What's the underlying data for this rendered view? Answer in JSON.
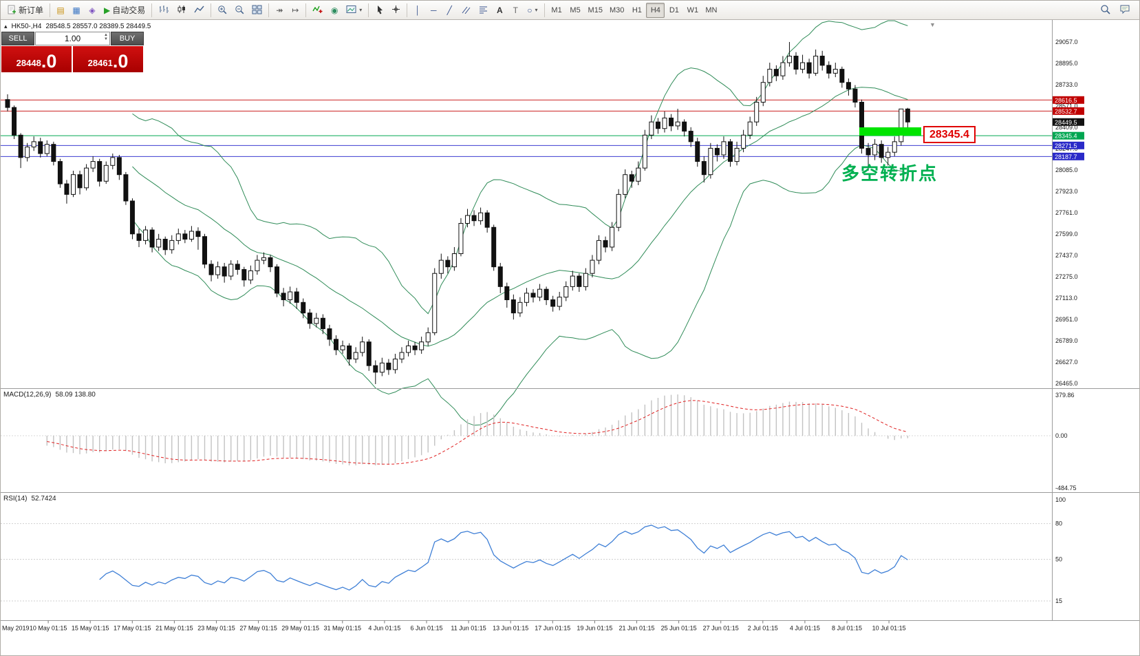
{
  "toolbar": {
    "new_order_label": "新订单",
    "auto_trading_label": "自动交易",
    "timeframes": [
      "M1",
      "M5",
      "M15",
      "M30",
      "H1",
      "H4",
      "D1",
      "W1",
      "MN"
    ],
    "active_timeframe": "H4"
  },
  "icons": {
    "play": "▶",
    "terminal": "▤",
    "data_window": "▦",
    "navigator": "◈",
    "auto_scroll": "↠",
    "chart_shift": "↦",
    "globe": "◉",
    "vline": "│",
    "hline": "─",
    "trendline": "╱",
    "text": "A",
    "text_label": "T",
    "dropdown": "▾",
    "shapes": "○",
    "spin_up": "▲",
    "spin_down": "▼",
    "collapse": "▴",
    "shift_marker": "▼"
  },
  "symbol_info": {
    "symbol": "HK50-,H4",
    "ohlc": "28548.5 28557.0 28389.5 28449.5"
  },
  "trade_panel": {
    "sell_label": "SELL",
    "buy_label": "BUY",
    "volume": "1.00",
    "sell_price": {
      "main": "28448",
      "frac": ".0"
    },
    "buy_price": {
      "main": "28461",
      "frac": ".0"
    }
  },
  "annotations": {
    "turning_point_text": "多空转折点",
    "level_callout": "28345.4"
  },
  "price_axis": {
    "ticks": [
      29057.0,
      28895.0,
      28733.0,
      28571.0,
      28409.0,
      28247.0,
      28085.0,
      27923.0,
      27761.0,
      27599.0,
      27437.0,
      27275.0,
      27113.0,
      26951.0,
      26789.0,
      26627.0,
      26465.0
    ]
  },
  "levels": [
    {
      "price": 28616.5,
      "label": "28616.5",
      "color": "#cc2020",
      "tag_bg": "#c00000",
      "line": true
    },
    {
      "price": 28532.7,
      "label": "28532.7",
      "color": "#cc2020",
      "tag_bg": "#c00000",
      "line": true
    },
    {
      "price": 28449.5,
      "label": "28449.5",
      "color": "#000000",
      "tag_bg": "#111111",
      "line": false
    },
    {
      "price": 28345.4,
      "label": "28345.4",
      "color": "#00a651",
      "tag_bg": "#00a651",
      "line": true
    },
    {
      "price": 28271.5,
      "label": "28271.5",
      "color": "#3b3bd0",
      "tag_bg": "#2a2ac8",
      "line": true
    },
    {
      "price": 28187.7,
      "label": "28187.7",
      "color": "#3b3bd0",
      "tag_bg": "#2a2ac8",
      "line": true
    }
  ],
  "highlight_zone": {
    "price_top": 28409.0,
    "price_bottom": 28345.4,
    "color": "#00e400"
  },
  "time_axis": [
    "May 2019",
    "10 May 01:15",
    "15 May 01:15",
    "17 May 01:15",
    "21 May 01:15",
    "23 May 01:15",
    "27 May 01:15",
    "29 May 01:15",
    "31 May 01:15",
    "4 Jun 01:15",
    "6 Jun 01:15",
    "11 Jun 01:15",
    "13 Jun 01:15",
    "17 Jun 01:15",
    "19 Jun 01:15",
    "21 Jun 01:15",
    "25 Jun 01:15",
    "27 Jun 01:15",
    "2 Jul 01:15",
    "4 Jul 01:15",
    "8 Jul 01:15",
    "10 Jul 01:15"
  ],
  "indicators": {
    "macd": {
      "title": "MACD(12,26,9)",
      "value_text": "58.09 138.80",
      "axis_ticks": [
        "379.86",
        "0.00",
        "-484.75"
      ],
      "params": {
        "fast": 12,
        "slow": 26,
        "signal": 9
      }
    },
    "rsi": {
      "title": "RSI(14)",
      "value_text": "52.7424",
      "axis_ticks": [
        100,
        80,
        50,
        15
      ],
      "period": 14
    }
  },
  "colors": {
    "bollinger": "#2e8b57",
    "bull": "#ffffff",
    "bear": "#111111",
    "wick": "#111111",
    "macd_hist": "#c2c2c2",
    "macd_signal": "#e02020",
    "rsi_line": "#3e7fd6",
    "grid_sep": "#9a9a9a",
    "axis_text": "#1a1a1a",
    "level_red": "#cc2020",
    "level_green": "#00a651",
    "level_blue": "#3b3bd0"
  },
  "chart_data": {
    "type": "candlestick",
    "symbol": "HK50-",
    "timeframe": "H4",
    "bollinger": {
      "period": 20,
      "deviation": 2
    },
    "candles": [
      [
        28620,
        28660,
        28530,
        28560
      ],
      [
        28560,
        28575,
        28320,
        28350
      ],
      [
        28350,
        28365,
        28100,
        28180
      ],
      [
        28180,
        28290,
        28150,
        28260
      ],
      [
        28260,
        28340,
        28230,
        28300
      ],
      [
        28300,
        28330,
        28180,
        28210
      ],
      [
        28210,
        28310,
        28190,
        28280
      ],
      [
        28280,
        28300,
        28120,
        28150
      ],
      [
        28150,
        28170,
        27950,
        27980
      ],
      [
        27980,
        28010,
        27830,
        27900
      ],
      [
        27900,
        28080,
        27880,
        28050
      ],
      [
        28050,
        28080,
        27900,
        27950
      ],
      [
        27950,
        28130,
        27930,
        28100
      ],
      [
        28100,
        28190,
        28070,
        28150
      ],
      [
        28150,
        28170,
        27960,
        28000
      ],
      [
        28000,
        28150,
        27980,
        28120
      ],
      [
        28120,
        28210,
        28090,
        28180
      ],
      [
        28180,
        28200,
        28010,
        28050
      ],
      [
        28050,
        28070,
        27820,
        27850
      ],
      [
        27850,
        27870,
        27560,
        27600
      ],
      [
        27600,
        27640,
        27500,
        27550
      ],
      [
        27550,
        27660,
        27520,
        27630
      ],
      [
        27630,
        27650,
        27460,
        27500
      ],
      [
        27500,
        27600,
        27470,
        27560
      ],
      [
        27560,
        27580,
        27440,
        27480
      ],
      [
        27480,
        27590,
        27450,
        27550
      ],
      [
        27550,
        27640,
        27520,
        27600
      ],
      [
        27600,
        27630,
        27530,
        27560
      ],
      [
        27560,
        27660,
        27540,
        27620
      ],
      [
        27620,
        27650,
        27480,
        27580
      ],
      [
        27580,
        27600,
        27340,
        27370
      ],
      [
        27370,
        27400,
        27240,
        27290
      ],
      [
        27290,
        27390,
        27260,
        27350
      ],
      [
        27350,
        27380,
        27230,
        27280
      ],
      [
        27280,
        27400,
        27250,
        27370
      ],
      [
        27370,
        27400,
        27290,
        27330
      ],
      [
        27330,
        27350,
        27200,
        27250
      ],
      [
        27250,
        27360,
        27220,
        27320
      ],
      [
        27320,
        27440,
        27290,
        27400
      ],
      [
        27400,
        27460,
        27370,
        27420
      ],
      [
        27420,
        27440,
        27310,
        27350
      ],
      [
        27350,
        27370,
        27120,
        27150
      ],
      [
        27150,
        27190,
        27050,
        27100
      ],
      [
        27100,
        27200,
        27070,
        27160
      ],
      [
        27160,
        27190,
        27030,
        27080
      ],
      [
        27080,
        27110,
        26960,
        27000
      ],
      [
        27000,
        27030,
        26880,
        26920
      ],
      [
        26920,
        27000,
        26890,
        26960
      ],
      [
        26960,
        26990,
        26840,
        26880
      ],
      [
        26880,
        26910,
        26750,
        26800
      ],
      [
        26800,
        26830,
        26680,
        26720
      ],
      [
        26720,
        26790,
        26690,
        26750
      ],
      [
        26750,
        26770,
        26600,
        26650
      ],
      [
        26650,
        26740,
        26620,
        26700
      ],
      [
        26700,
        26820,
        26670,
        26780
      ],
      [
        26780,
        26800,
        26560,
        26600
      ],
      [
        26600,
        26640,
        26460,
        26550
      ],
      [
        26550,
        26660,
        26520,
        26620
      ],
      [
        26620,
        26650,
        26530,
        26570
      ],
      [
        26570,
        26690,
        26540,
        26650
      ],
      [
        26650,
        26740,
        26620,
        26700
      ],
      [
        26700,
        26790,
        26670,
        26750
      ],
      [
        26750,
        26780,
        26680,
        26720
      ],
      [
        26720,
        26820,
        26690,
        26780
      ],
      [
        26780,
        26890,
        26750,
        26850
      ],
      [
        26850,
        27340,
        26830,
        27300
      ],
      [
        27300,
        27450,
        27260,
        27400
      ],
      [
        27400,
        27430,
        27300,
        27350
      ],
      [
        27350,
        27500,
        27320,
        27450
      ],
      [
        27450,
        27720,
        27430,
        27680
      ],
      [
        27680,
        27790,
        27650,
        27740
      ],
      [
        27740,
        27780,
        27660,
        27700
      ],
      [
        27700,
        27800,
        27670,
        27760
      ],
      [
        27760,
        27780,
        27610,
        27650
      ],
      [
        27650,
        27670,
        27320,
        27350
      ],
      [
        27350,
        27380,
        27150,
        27200
      ],
      [
        27200,
        27230,
        27040,
        27100
      ],
      [
        27100,
        27140,
        26950,
        27000
      ],
      [
        27000,
        27120,
        26970,
        27080
      ],
      [
        27080,
        27190,
        27050,
        27150
      ],
      [
        27150,
        27180,
        27080,
        27120
      ],
      [
        27120,
        27220,
        27090,
        27180
      ],
      [
        27180,
        27200,
        27060,
        27100
      ],
      [
        27100,
        27130,
        27010,
        27050
      ],
      [
        27050,
        27160,
        27020,
        27120
      ],
      [
        27120,
        27240,
        27090,
        27200
      ],
      [
        27200,
        27320,
        27170,
        27280
      ],
      [
        27280,
        27300,
        27160,
        27200
      ],
      [
        27200,
        27340,
        27170,
        27300
      ],
      [
        27300,
        27440,
        27270,
        27400
      ],
      [
        27400,
        27590,
        27370,
        27550
      ],
      [
        27550,
        27580,
        27460,
        27500
      ],
      [
        27500,
        27690,
        27470,
        27650
      ],
      [
        27650,
        27940,
        27620,
        27900
      ],
      [
        27900,
        28090,
        27870,
        28050
      ],
      [
        28050,
        28080,
        27950,
        28000
      ],
      [
        28000,
        28150,
        27970,
        28100
      ],
      [
        28100,
        28390,
        28080,
        28350
      ],
      [
        28350,
        28500,
        28320,
        28450
      ],
      [
        28450,
        28480,
        28360,
        28400
      ],
      [
        28400,
        28530,
        28370,
        28480
      ],
      [
        28480,
        28510,
        28380,
        28420
      ],
      [
        28420,
        28550,
        28390,
        28450
      ],
      [
        28450,
        28470,
        28340,
        28380
      ],
      [
        28380,
        28410,
        28260,
        28300
      ],
      [
        28300,
        28330,
        28110,
        28150
      ],
      [
        28150,
        28190,
        27990,
        28050
      ],
      [
        28050,
        28290,
        28020,
        28250
      ],
      [
        28250,
        28280,
        28150,
        28200
      ],
      [
        28200,
        28340,
        28170,
        28300
      ],
      [
        28300,
        28320,
        28110,
        28150
      ],
      [
        28150,
        28300,
        28120,
        28250
      ],
      [
        28250,
        28390,
        28220,
        28350
      ],
      [
        28350,
        28490,
        28320,
        28450
      ],
      [
        28450,
        28640,
        28420,
        28600
      ],
      [
        28600,
        28800,
        28570,
        28750
      ],
      [
        28750,
        28900,
        28720,
        28850
      ],
      [
        28850,
        28880,
        28760,
        28800
      ],
      [
        28800,
        28950,
        28770,
        28900
      ],
      [
        28900,
        29057,
        28870,
        28950
      ],
      [
        28950,
        28980,
        28810,
        28850
      ],
      [
        28850,
        28960,
        28820,
        28900
      ],
      [
        28900,
        28930,
        28780,
        28820
      ],
      [
        28820,
        29000,
        28800,
        28950
      ],
      [
        28950,
        28990,
        28840,
        28880
      ],
      [
        28880,
        28910,
        28780,
        28820
      ],
      [
        28820,
        28900,
        28790,
        28850
      ],
      [
        28850,
        28870,
        28710,
        28750
      ],
      [
        28750,
        28780,
        28650,
        28700
      ],
      [
        28700,
        28730,
        28560,
        28600
      ],
      [
        28600,
        28620,
        28210,
        28250
      ],
      [
        28250,
        28290,
        28080,
        28200
      ],
      [
        28200,
        28320,
        28160,
        28280
      ],
      [
        28280,
        28310,
        28140,
        28180
      ],
      [
        28180,
        28260,
        28120,
        28220
      ],
      [
        28220,
        28340,
        28190,
        28300
      ],
      [
        28300,
        28550,
        28270,
        28548.5
      ],
      [
        28548.5,
        28557,
        28389.5,
        28449.5
      ]
    ]
  }
}
